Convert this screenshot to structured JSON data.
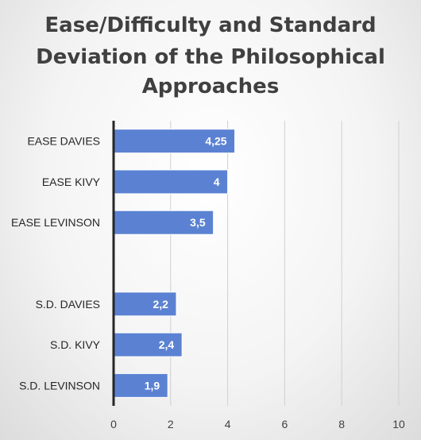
{
  "chart_data": {
    "type": "bar",
    "orientation": "horizontal",
    "title_lines": [
      "Ease/Difficulty and Standard",
      "Deviation of the Philosophical",
      "Approaches"
    ],
    "categories": [
      "EASE DAVIES",
      "EASE KIVY",
      "EASE LEVINSON",
      "",
      "S.D. DAVIES",
      "S.D. KIVY",
      "S.D. LEVINSON"
    ],
    "values": [
      4.25,
      4,
      3.5,
      null,
      2.2,
      2.4,
      1.9
    ],
    "value_labels": [
      "4,25",
      "4",
      "3,5",
      "",
      "2,2",
      "2,4",
      "1,9"
    ],
    "xlim": [
      0,
      10
    ],
    "x_ticks": [
      0,
      2,
      4,
      6,
      8,
      10
    ],
    "grid": true,
    "legend": false,
    "colors": {
      "bar": "#5b82d2",
      "bar_border": "#ffffff",
      "title": "#404040"
    }
  }
}
